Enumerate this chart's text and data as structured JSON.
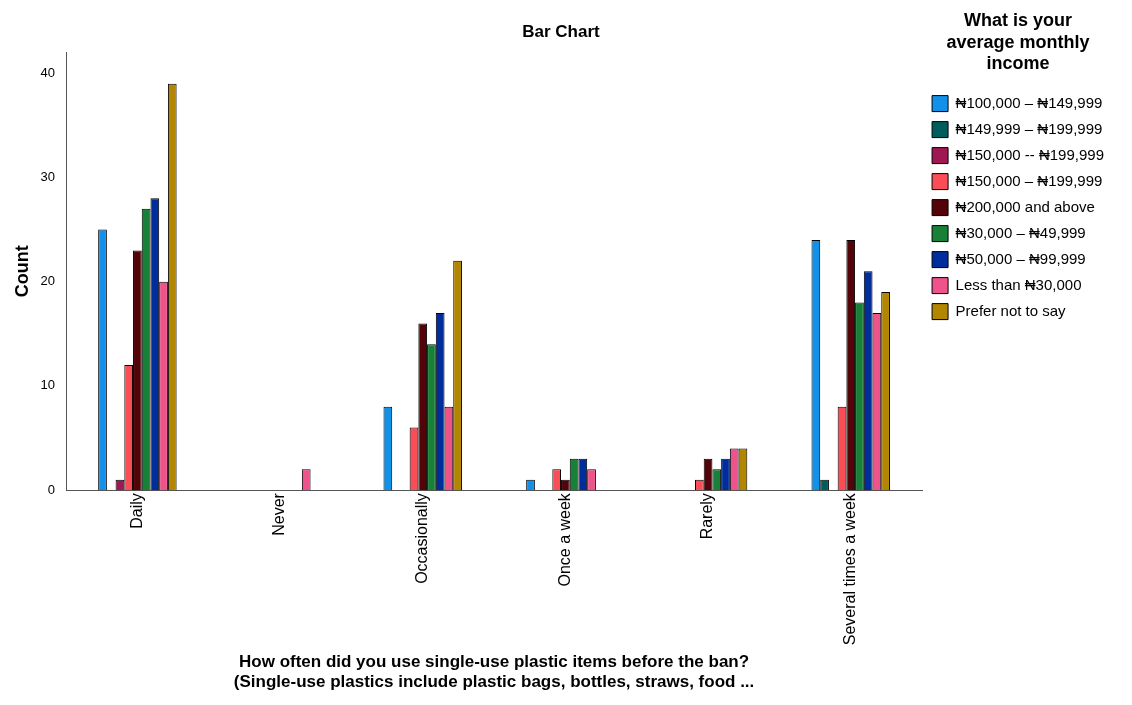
{
  "chart_data": {
    "type": "bar",
    "title": "Bar Chart",
    "xlabel": "How often did you use single-use plastic items before the ban? (Single-use plastics include plastic bags, bottles, straws, food ...",
    "ylabel": "Count",
    "legend_title": "What is your average monthly income",
    "legend": "right",
    "grid": false,
    "categories": [
      "Daily",
      "Never",
      "Occasionally",
      "Once a week",
      "Rarely",
      "Several times a week"
    ],
    "ylim": [
      0,
      42
    ],
    "yticks": [
      0,
      10,
      20,
      30,
      40
    ],
    "series": [
      {
        "name": "₦100,000 – ₦149,999",
        "color": "#1192e8",
        "values": [
          25,
          null,
          8,
          1,
          null,
          24
        ]
      },
      {
        "name": "₦149,999 – ₦199,999",
        "color": "#005d5d",
        "values": [
          null,
          null,
          null,
          null,
          null,
          1
        ]
      },
      {
        "name": "₦150,000 -- ₦199,999",
        "color": "#9f1853",
        "values": [
          1,
          null,
          null,
          null,
          null,
          null
        ]
      },
      {
        "name": "₦150,000 – ₦199,999",
        "color": "#fa4d56",
        "values": [
          12,
          null,
          6,
          2,
          1,
          8
        ]
      },
      {
        "name": "₦200,000 and above",
        "color": "#520408",
        "values": [
          23,
          null,
          16,
          1,
          3,
          24
        ]
      },
      {
        "name": "₦30,000 – ₦49,999",
        "color": "#198038",
        "values": [
          27,
          null,
          14,
          3,
          2,
          18
        ]
      },
      {
        "name": "₦50,000 – ₦99,999",
        "color": "#002d9c",
        "values": [
          28,
          null,
          17,
          3,
          3,
          21
        ]
      },
      {
        "name": "Less than ₦30,000",
        "color": "#ee538b",
        "values": [
          20,
          2,
          8,
          2,
          4,
          17
        ]
      },
      {
        "name": "Prefer not to say",
        "color": "#b28600",
        "values": [
          39,
          null,
          22,
          null,
          4,
          19
        ]
      }
    ]
  }
}
